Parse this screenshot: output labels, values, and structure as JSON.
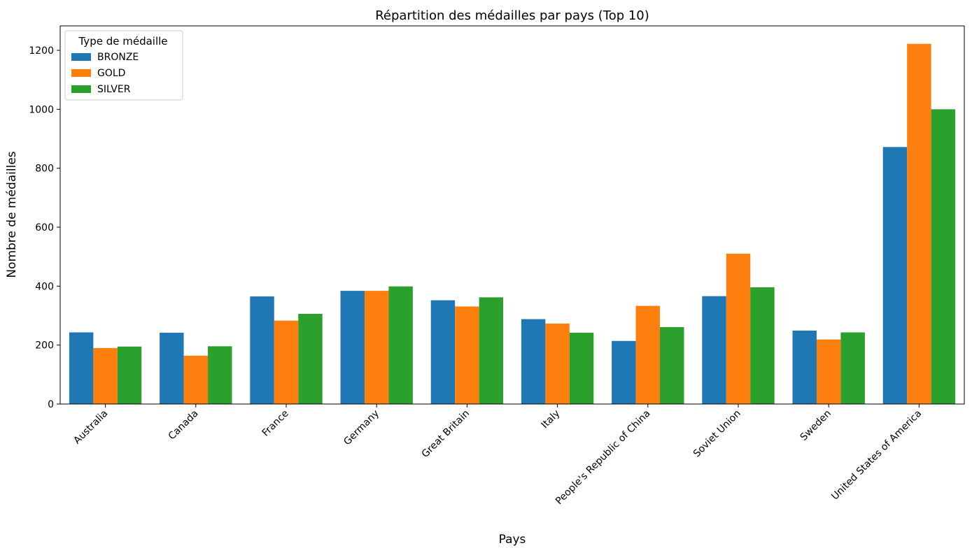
{
  "chart_data": {
    "type": "bar",
    "title": "Répartition des médailles par pays (Top 10)",
    "xlabel": "Pays",
    "ylabel": "Nombre de médailles",
    "categories": [
      "Australia",
      "Canada",
      "France",
      "Germany",
      "Great Britain",
      "Italy",
      "People's Republic of China",
      "Soviet Union",
      "Sweden",
      "United States of America"
    ],
    "series": [
      {
        "name": "BRONZE",
        "color": "#1f77b4",
        "values": [
          243,
          242,
          365,
          384,
          352,
          288,
          214,
          366,
          249,
          872
        ]
      },
      {
        "name": "GOLD",
        "color": "#ff7f0e",
        "values": [
          190,
          164,
          283,
          384,
          331,
          273,
          333,
          510,
          219,
          1222
        ]
      },
      {
        "name": "SILVER",
        "color": "#2ca02c",
        "values": [
          195,
          196,
          306,
          399,
          362,
          242,
          261,
          396,
          243,
          1000
        ]
      }
    ],
    "ylim": [
      0,
      1283
    ],
    "yticks": [
      0,
      200,
      400,
      600,
      800,
      1000,
      1200
    ],
    "legend": {
      "title": "Type de médaille",
      "position": "top-left"
    },
    "grid": false
  }
}
